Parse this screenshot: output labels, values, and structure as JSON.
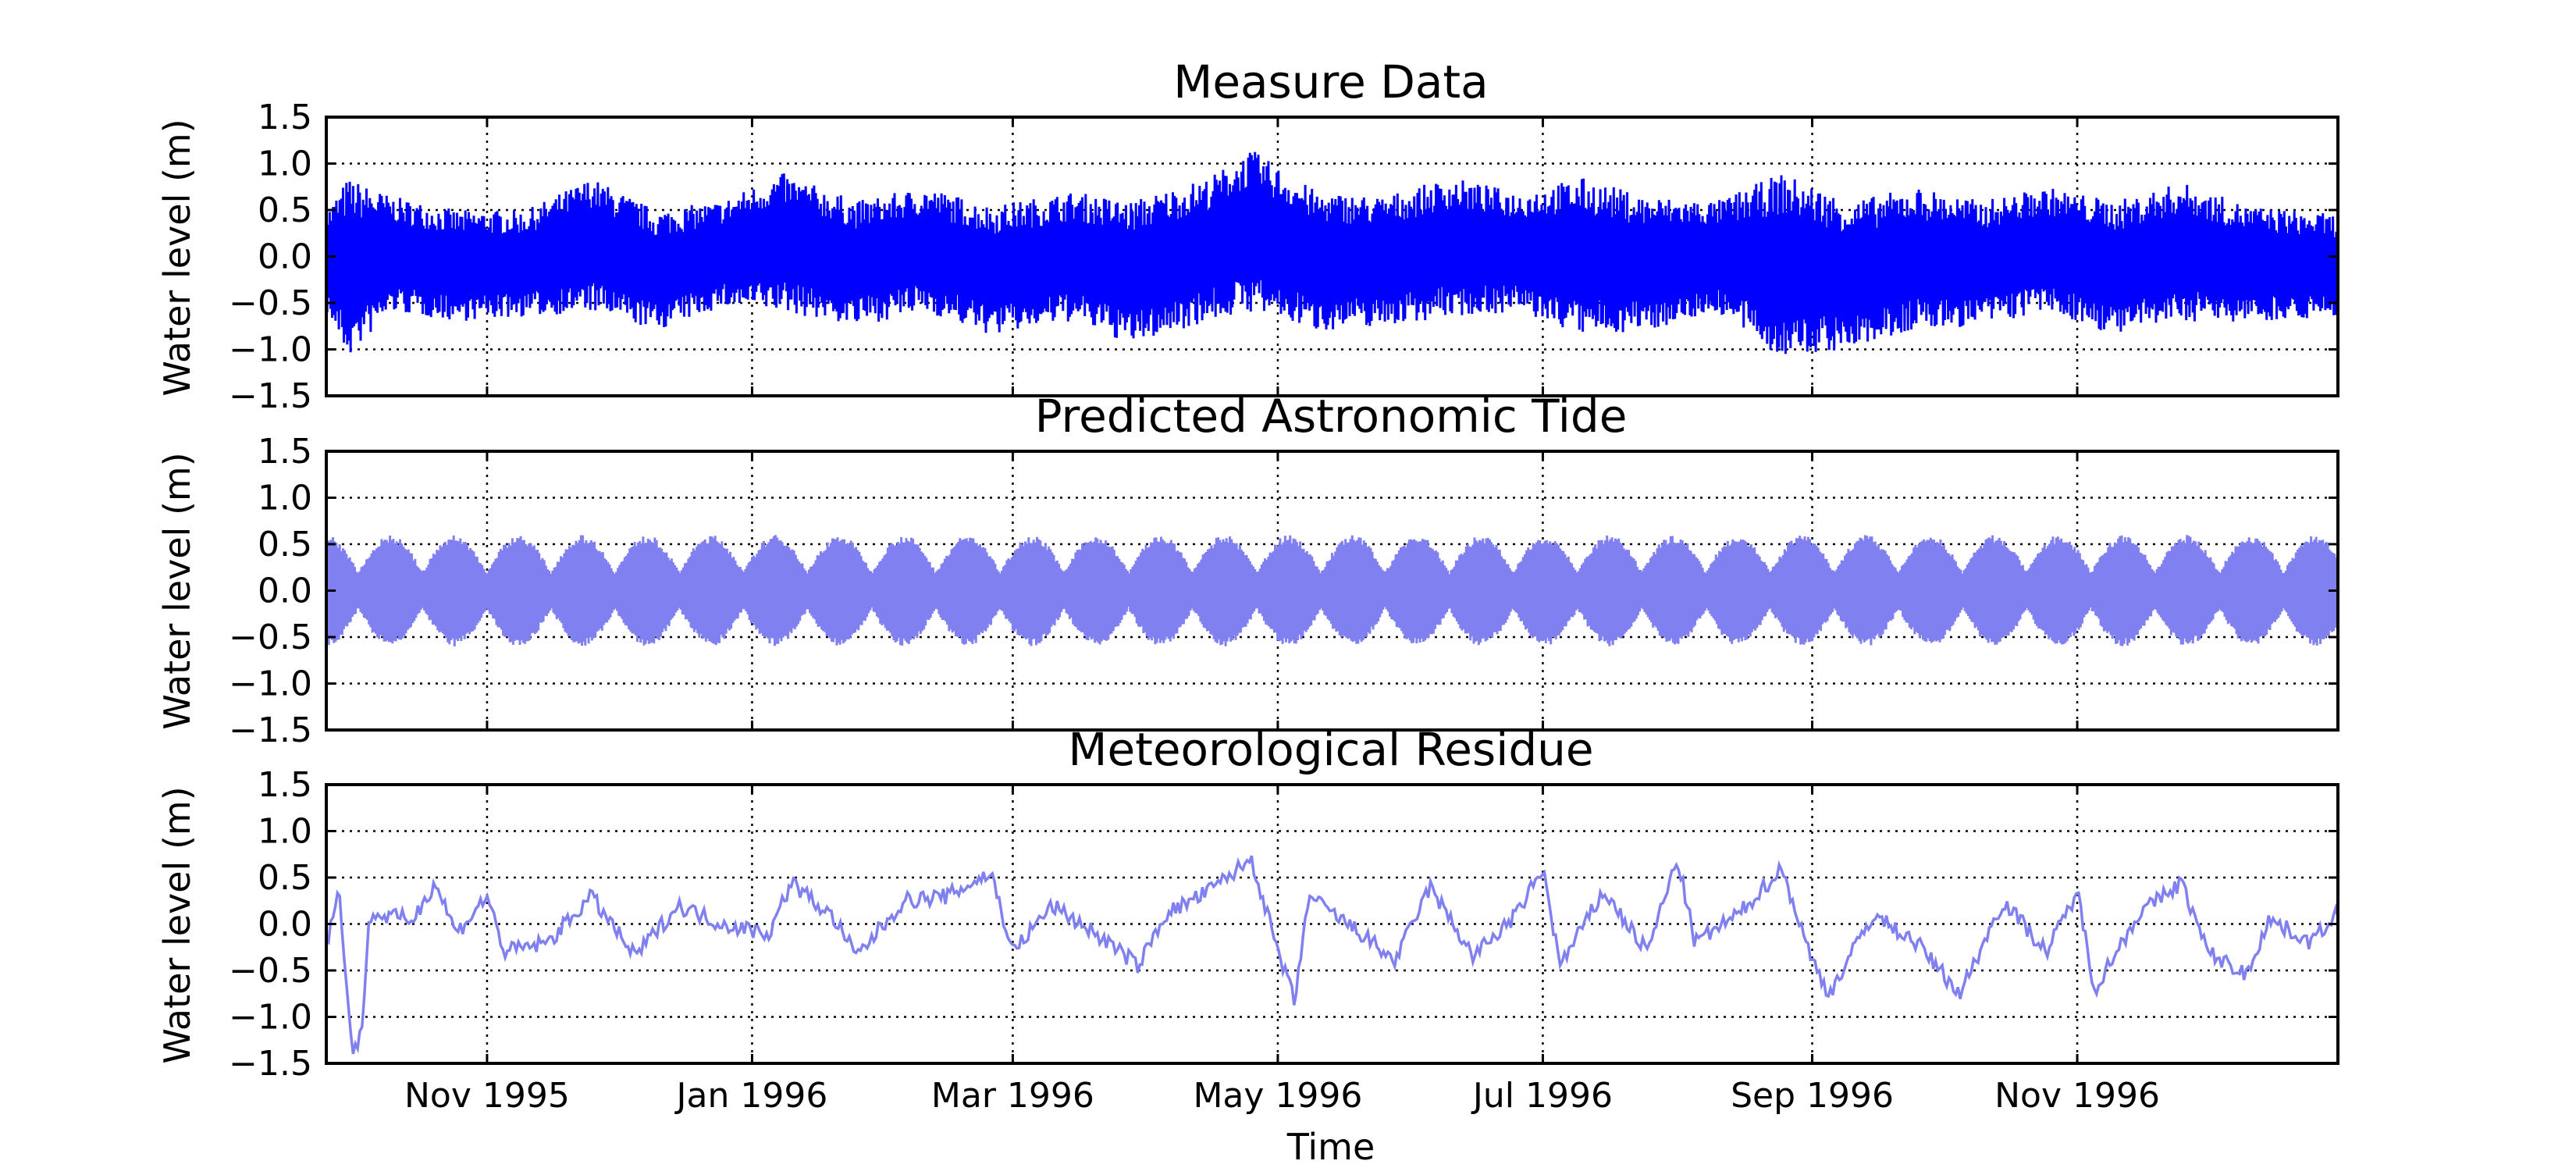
{
  "chart_data": {
    "type": "line",
    "xlabel": "Time",
    "x_range": [
      "1995-09-25",
      "1996-12-31"
    ],
    "x_ticks": [
      "1995-11-01",
      "1996-01-01",
      "1996-03-01",
      "1996-05-01",
      "1996-07-01",
      "1996-09-01",
      "1996-11-01"
    ],
    "x_tick_labels": [
      "Nov 1995",
      "Jan 1996",
      "Mar 1996",
      "May 1996",
      "Jul 1996",
      "Sep 1996",
      "Nov 1996"
    ],
    "grid": true,
    "panels": [
      {
        "title": "Measure Data",
        "ylabel": "Water level (m)",
        "ylim": [
          -1.5,
          1.5
        ],
        "y_ticks": [
          -1.5,
          -1.0,
          -0.5,
          0.0,
          0.5,
          1.0,
          1.5
        ],
        "y_tick_labels": [
          "−1.5",
          "−1.0",
          "−0.5",
          "0.0",
          "0.5",
          "1.0",
          "1.5"
        ],
        "color": "#0000ff",
        "series_kind": "measured",
        "envelope": [
          {
            "date": "1995-09-25",
            "max": 0.5,
            "min": -0.6
          },
          {
            "date": "1995-09-30",
            "max": 0.85,
            "min": -1.1
          },
          {
            "date": "1995-10-10",
            "max": 0.65,
            "min": -0.6
          },
          {
            "date": "1995-10-25",
            "max": 0.5,
            "min": -0.7
          },
          {
            "date": "1995-11-10",
            "max": 0.5,
            "min": -0.65
          },
          {
            "date": "1995-11-25",
            "max": 0.85,
            "min": -0.6
          },
          {
            "date": "1995-12-10",
            "max": 0.5,
            "min": -0.8
          },
          {
            "date": "1995-12-25",
            "max": 0.6,
            "min": -0.55
          },
          {
            "date": "1996-01-08",
            "max": 0.9,
            "min": -0.6
          },
          {
            "date": "1996-01-25",
            "max": 0.6,
            "min": -0.75
          },
          {
            "date": "1996-02-10",
            "max": 0.75,
            "min": -0.6
          },
          {
            "date": "1996-02-25",
            "max": 0.55,
            "min": -0.85
          },
          {
            "date": "1996-03-15",
            "max": 0.7,
            "min": -0.7
          },
          {
            "date": "1996-03-28",
            "max": 0.6,
            "min": -0.95
          },
          {
            "date": "1996-04-15",
            "max": 0.85,
            "min": -0.7
          },
          {
            "date": "1996-04-25",
            "max": 1.15,
            "min": -0.6
          },
          {
            "date": "1996-05-10",
            "max": 0.7,
            "min": -0.8
          },
          {
            "date": "1996-05-25",
            "max": 0.65,
            "min": -0.75
          },
          {
            "date": "1996-06-10",
            "max": 0.85,
            "min": -0.65
          },
          {
            "date": "1996-06-25",
            "max": 0.7,
            "min": -0.6
          },
          {
            "date": "1996-07-10",
            "max": 0.85,
            "min": -0.85
          },
          {
            "date": "1996-07-25",
            "max": 0.65,
            "min": -0.8
          },
          {
            "date": "1996-08-10",
            "max": 0.6,
            "min": -0.6
          },
          {
            "date": "1996-08-25",
            "max": 0.9,
            "min": -1.1
          },
          {
            "date": "1996-09-10",
            "max": 0.6,
            "min": -1.0
          },
          {
            "date": "1996-09-25",
            "max": 0.75,
            "min": -0.8
          },
          {
            "date": "1996-10-10",
            "max": 0.6,
            "min": -0.75
          },
          {
            "date": "1996-10-25",
            "max": 0.75,
            "min": -0.6
          },
          {
            "date": "1996-11-10",
            "max": 0.6,
            "min": -0.85
          },
          {
            "date": "1996-11-25",
            "max": 0.8,
            "min": -0.7
          },
          {
            "date": "1996-12-10",
            "max": 0.55,
            "min": -0.7
          },
          {
            "date": "1996-12-31",
            "max": 0.45,
            "min": -0.65
          }
        ]
      },
      {
        "title": "Predicted Astronomic Tide",
        "ylabel": "Water level (m)",
        "ylim": [
          -1.5,
          1.5
        ],
        "y_ticks": [
          -1.5,
          -1.0,
          -0.5,
          0.0,
          0.5,
          1.0,
          1.5
        ],
        "y_tick_labels": [
          "−1.5",
          "−1.0",
          "−0.5",
          "0.0",
          "0.5",
          "1.0",
          "1.5"
        ],
        "color": "#8080f0",
        "series_kind": "tide",
        "spring_amplitude": 0.6,
        "neap_amplitude": 0.2,
        "spring_neap_period_days": 14.77
      },
      {
        "title": "Meteorological Residue",
        "ylabel": "Water level (m)",
        "ylim": [
          -1.5,
          1.5
        ],
        "y_ticks": [
          -1.5,
          -1.0,
          -0.5,
          0.0,
          0.5,
          1.0,
          1.5
        ],
        "y_tick_labels": [
          "−1.5",
          "−1.0",
          "−0.5",
          "0.0",
          "0.5",
          "1.0",
          "1.5"
        ],
        "color": "#8080f0",
        "series_kind": "residue",
        "points": [
          {
            "date": "1995-09-25",
            "y": -0.2
          },
          {
            "date": "1995-09-28",
            "y": 0.35
          },
          {
            "date": "1995-10-01",
            "y": -1.4
          },
          {
            "date": "1995-10-03",
            "y": -1.2
          },
          {
            "date": "1995-10-05",
            "y": 0.1
          },
          {
            "date": "1995-10-15",
            "y": 0.05
          },
          {
            "date": "1995-10-20",
            "y": 0.45
          },
          {
            "date": "1995-10-25",
            "y": -0.1
          },
          {
            "date": "1995-11-01",
            "y": 0.3
          },
          {
            "date": "1995-11-05",
            "y": -0.3
          },
          {
            "date": "1995-11-15",
            "y": -0.2
          },
          {
            "date": "1995-11-25",
            "y": 0.3
          },
          {
            "date": "1995-12-05",
            "y": -0.35
          },
          {
            "date": "1995-12-15",
            "y": 0.2
          },
          {
            "date": "1995-12-25",
            "y": 0.0
          },
          {
            "date": "1996-01-05",
            "y": -0.1
          },
          {
            "date": "1996-01-10",
            "y": 0.45
          },
          {
            "date": "1996-01-20",
            "y": 0.05
          },
          {
            "date": "1996-01-25",
            "y": -0.35
          },
          {
            "date": "1996-02-05",
            "y": 0.25
          },
          {
            "date": "1996-02-15",
            "y": 0.3
          },
          {
            "date": "1996-02-25",
            "y": 0.55
          },
          {
            "date": "1996-03-01",
            "y": -0.3
          },
          {
            "date": "1996-03-10",
            "y": 0.2
          },
          {
            "date": "1996-03-20",
            "y": -0.1
          },
          {
            "date": "1996-03-30",
            "y": -0.45
          },
          {
            "date": "1996-04-05",
            "y": 0.1
          },
          {
            "date": "1996-04-15",
            "y": 0.35
          },
          {
            "date": "1996-04-25",
            "y": 0.7
          },
          {
            "date": "1996-05-01",
            "y": -0.3
          },
          {
            "date": "1996-05-05",
            "y": -0.85
          },
          {
            "date": "1996-05-08",
            "y": 0.3
          },
          {
            "date": "1996-05-20",
            "y": -0.1
          },
          {
            "date": "1996-05-28",
            "y": -0.4
          },
          {
            "date": "1996-06-05",
            "y": 0.4
          },
          {
            "date": "1996-06-15",
            "y": -0.35
          },
          {
            "date": "1996-06-25",
            "y": 0.1
          },
          {
            "date": "1996-07-01",
            "y": 0.6
          },
          {
            "date": "1996-07-05",
            "y": -0.45
          },
          {
            "date": "1996-07-15",
            "y": 0.35
          },
          {
            "date": "1996-07-25",
            "y": -0.3
          },
          {
            "date": "1996-08-01",
            "y": 0.7
          },
          {
            "date": "1996-08-05",
            "y": -0.2
          },
          {
            "date": "1996-08-15",
            "y": 0.1
          },
          {
            "date": "1996-08-25",
            "y": 0.6
          },
          {
            "date": "1996-09-01",
            "y": -0.4
          },
          {
            "date": "1996-09-05",
            "y": -0.75
          },
          {
            "date": "1996-09-15",
            "y": 0.1
          },
          {
            "date": "1996-09-25",
            "y": -0.2
          },
          {
            "date": "1996-10-05",
            "y": -0.75
          },
          {
            "date": "1996-10-15",
            "y": 0.25
          },
          {
            "date": "1996-10-25",
            "y": -0.3
          },
          {
            "date": "1996-11-01",
            "y": 0.35
          },
          {
            "date": "1996-11-05",
            "y": -0.7
          },
          {
            "date": "1996-11-15",
            "y": 0.1
          },
          {
            "date": "1996-11-25",
            "y": 0.45
          },
          {
            "date": "1996-12-01",
            "y": -0.3
          },
          {
            "date": "1996-12-10",
            "y": -0.55
          },
          {
            "date": "1996-12-15",
            "y": 0.05
          },
          {
            "date": "1996-12-25",
            "y": -0.2
          },
          {
            "date": "1996-12-31",
            "y": 0.15
          }
        ]
      }
    ]
  }
}
